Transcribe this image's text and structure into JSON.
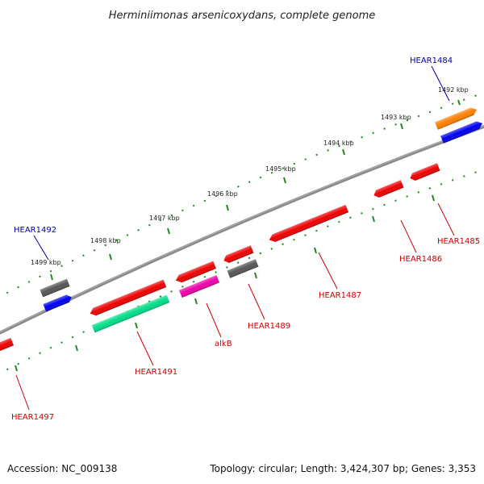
{
  "title": "Herminiimonas arsenicoxydans, complete genome",
  "accession": "Accession: NC_009138",
  "topology": "Topology: circular; Length: 3,424,307 bp; Genes: 3,353",
  "kbp_labels": [
    "1492 kbp",
    "1493 kbp",
    "1494 kbp",
    "1495 kbp",
    "1496 kbp",
    "1497 kbp",
    "1498 kbp",
    "1499 kbp"
  ],
  "features": {
    "plus_strand_top": [
      {
        "color": "#ff7f00"
      },
      {
        "color": "#555555"
      }
    ],
    "plus_strand_bottom": [
      {
        "color": "#0000ee"
      },
      {
        "color": "#0000ee"
      }
    ],
    "minus_strand_top": [
      {
        "color": "#ee0000"
      },
      {
        "color": "#ee0000"
      },
      {
        "color": "#ee0000"
      },
      {
        "color": "#ee0000"
      },
      {
        "color": "#ee0000"
      },
      {
        "color": "#ee0000"
      },
      {
        "color": "#ee0000"
      }
    ],
    "minus_strand_bottom": [
      {
        "color": "#ee0000"
      },
      {
        "color": "#00dd88"
      },
      {
        "color": "#ee00aa"
      },
      {
        "color": "#555555"
      }
    ]
  },
  "gene_labels": [
    {
      "text": "HEAR1484",
      "color": "#0000aa"
    },
    {
      "text": "HEAR1492",
      "color": "#0000aa"
    },
    {
      "text": "HEAR1485",
      "color": "#cc0000"
    },
    {
      "text": "HEAR1486",
      "color": "#cc0000"
    },
    {
      "text": "HEAR1487",
      "color": "#cc0000"
    },
    {
      "text": "HEAR1489",
      "color": "#cc0000"
    },
    {
      "text": "alkB",
      "color": "#cc0000"
    },
    {
      "text": "HEAR1491",
      "color": "#cc0000"
    },
    {
      "text": "HEAR1497",
      "color": "#cc0000"
    }
  ],
  "colors": {
    "backbone": "#8a8a8a",
    "tick_ring": "#228822"
  }
}
